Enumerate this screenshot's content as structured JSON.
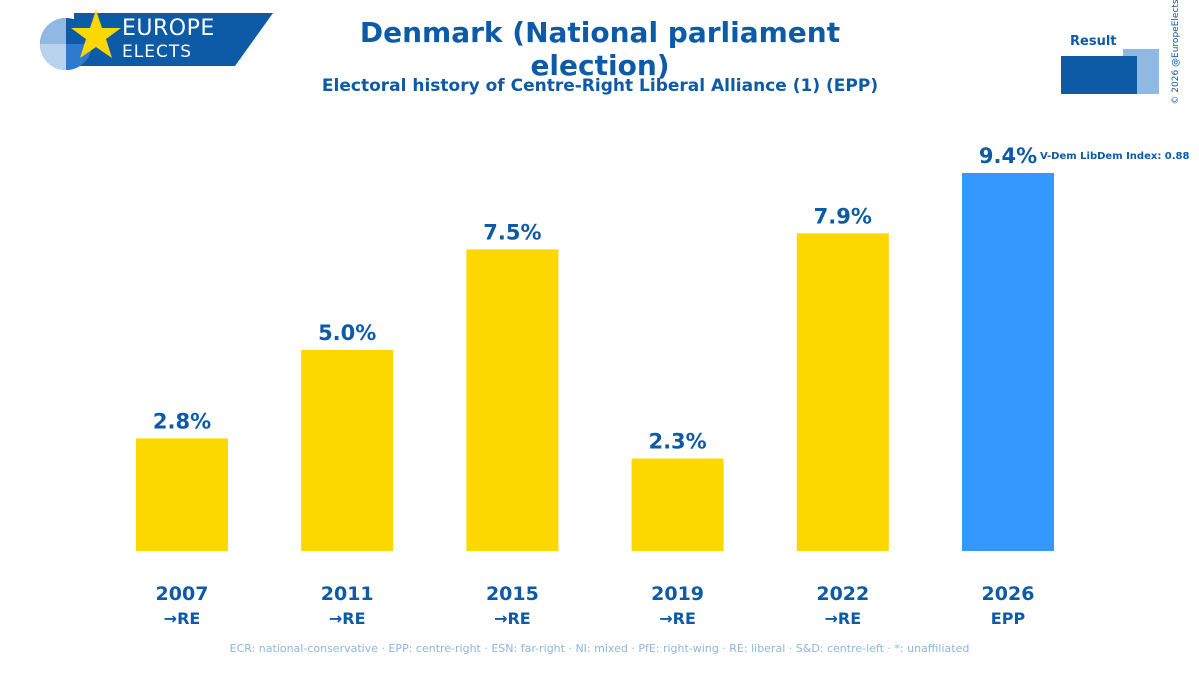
{
  "logo": {
    "line1": "EUROPE",
    "line2": "ELECTS"
  },
  "header": {
    "title": "Denmark (National parliament election)",
    "subtitle": "Electoral history of Centre-Right Liberal Alliance (1) (EPP)"
  },
  "legend": {
    "label": "Result"
  },
  "copyright": "© 2026 @EuropeElects",
  "footer": "ECR: national-conservative · EPP: centre-right · ESN: far-right · NI: mixed · PfE: right-wing · RE: liberal · S&D: centre-left · *: unaffiliated",
  "chart_data": {
    "type": "bar",
    "categories": [
      "2007",
      "2011",
      "2015",
      "2019",
      "2022",
      "2026"
    ],
    "groups": [
      "→RE",
      "→RE",
      "→RE",
      "→RE",
      "→RE",
      "EPP"
    ],
    "values": [
      2.8,
      5.0,
      7.5,
      2.3,
      7.9,
      9.4
    ],
    "value_labels": [
      "2.8%",
      "5.0%",
      "7.5%",
      "2.3%",
      "7.9%",
      "9.4%"
    ],
    "annotations": [
      {
        "category": "2026",
        "text": "V-Dem LibDem Index: 0.88"
      }
    ],
    "colors": {
      "past": "#fdd800",
      "current": "#3399ff",
      "text": "#0d5aa7"
    },
    "highlight_index": 5,
    "grid": false,
    "legend_position": "top-right",
    "ylim": [
      0,
      9.4
    ]
  }
}
